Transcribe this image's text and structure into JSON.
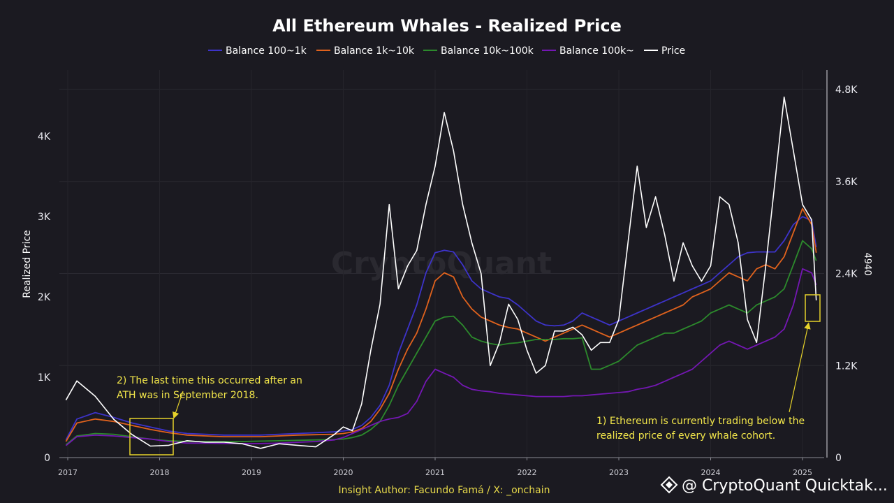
{
  "chart_data": {
    "type": "line",
    "title": "All Ethereum Whales - Realized Price",
    "ylabel": "Realized Price",
    "y2_marker_label": "4940",
    "legend_position": "top-center",
    "grid": true,
    "x_ticks": [
      "2017",
      "2018",
      "2019",
      "2020",
      "2021",
      "2022",
      "2023",
      "2024",
      "2025"
    ],
    "ylim": [
      0,
      4700
    ],
    "y_ticks": [
      {
        "value": 0,
        "label": "0"
      },
      {
        "value": 1000,
        "label": "1K"
      },
      {
        "value": 2000,
        "label": "2K"
      },
      {
        "value": 3000,
        "label": "3K"
      },
      {
        "value": 4000,
        "label": "4K"
      }
    ],
    "y2lim": [
      0,
      4800
    ],
    "y2_ticks": [
      {
        "value": 0,
        "label": "0"
      },
      {
        "value": 1200,
        "label": "1.2K"
      },
      {
        "value": 2400,
        "label": "2.4K"
      },
      {
        "value": 3600,
        "label": "3.6K"
      },
      {
        "value": 4800,
        "label": "4.8K"
      }
    ],
    "x": [
      2016.98,
      2017.1,
      2017.3,
      2017.5,
      2017.7,
      2017.9,
      2018.1,
      2018.3,
      2018.5,
      2018.7,
      2018.9,
      2019.1,
      2019.3,
      2019.5,
      2019.7,
      2019.9,
      2020.0,
      2020.1,
      2020.2,
      2020.3,
      2020.4,
      2020.5,
      2020.6,
      2020.7,
      2020.8,
      2020.9,
      2021.0,
      2021.1,
      2021.2,
      2021.3,
      2021.4,
      2021.5,
      2021.6,
      2021.7,
      2021.8,
      2021.9,
      2022.0,
      2022.1,
      2022.2,
      2022.3,
      2022.4,
      2022.5,
      2022.6,
      2022.7,
      2022.8,
      2022.9,
      2023.0,
      2023.1,
      2023.2,
      2023.3,
      2023.4,
      2023.5,
      2023.6,
      2023.7,
      2023.8,
      2023.9,
      2024.0,
      2024.1,
      2024.2,
      2024.3,
      2024.4,
      2024.5,
      2024.6,
      2024.7,
      2024.8,
      2024.9,
      2025.0,
      2025.1,
      2025.15
    ],
    "series": [
      {
        "name": "Balance 100~1k",
        "color": "#3d33c9",
        "axis": "left",
        "values": [
          220,
          480,
          560,
          500,
          430,
          380,
          330,
          300,
          290,
          280,
          280,
          280,
          290,
          300,
          310,
          320,
          330,
          350,
          400,
          500,
          650,
          900,
          1300,
          1600,
          1900,
          2300,
          2550,
          2580,
          2560,
          2400,
          2200,
          2100,
          2050,
          2000,
          1980,
          1900,
          1800,
          1700,
          1650,
          1640,
          1650,
          1700,
          1800,
          1750,
          1700,
          1650,
          1700,
          1750,
          1800,
          1850,
          1900,
          1950,
          2000,
          2050,
          2100,
          2150,
          2200,
          2300,
          2400,
          2500,
          2550,
          2560,
          2560,
          2560,
          2700,
          2900,
          3000,
          2950,
          2620
        ]
      },
      {
        "name": "Balance 1k~10k",
        "color": "#e0621d",
        "axis": "left",
        "values": [
          200,
          430,
          480,
          450,
          400,
          350,
          310,
          280,
          270,
          260,
          260,
          260,
          270,
          280,
          285,
          290,
          300,
          320,
          360,
          450,
          600,
          800,
          1100,
          1350,
          1550,
          1850,
          2200,
          2300,
          2250,
          2000,
          1850,
          1750,
          1700,
          1650,
          1620,
          1600,
          1550,
          1500,
          1450,
          1500,
          1550,
          1600,
          1650,
          1600,
          1550,
          1500,
          1550,
          1600,
          1650,
          1700,
          1750,
          1800,
          1850,
          1900,
          2000,
          2050,
          2100,
          2200,
          2300,
          2250,
          2200,
          2350,
          2400,
          2350,
          2500,
          2800,
          3100,
          2900,
          2550
        ]
      },
      {
        "name": "Balance 10k~100k",
        "color": "#2c8a2c",
        "axis": "left",
        "values": [
          160,
          270,
          300,
          290,
          260,
          230,
          210,
          200,
          200,
          200,
          200,
          205,
          210,
          215,
          220,
          225,
          230,
          250,
          280,
          350,
          450,
          650,
          900,
          1100,
          1300,
          1500,
          1700,
          1750,
          1760,
          1650,
          1500,
          1450,
          1420,
          1400,
          1420,
          1430,
          1450,
          1470,
          1470,
          1470,
          1480,
          1480,
          1490,
          1100,
          1100,
          1150,
          1200,
          1300,
          1400,
          1450,
          1500,
          1550,
          1550,
          1600,
          1650,
          1700,
          1800,
          1850,
          1900,
          1850,
          1800,
          1900,
          1950,
          2000,
          2100,
          2400,
          2700,
          2600,
          2450
        ]
      },
      {
        "name": "Balance 100k~",
        "color": "#7417b3",
        "axis": "left",
        "values": [
          150,
          260,
          280,
          270,
          250,
          230,
          200,
          180,
          180,
          175,
          175,
          175,
          180,
          190,
          200,
          220,
          250,
          300,
          350,
          400,
          450,
          480,
          500,
          550,
          700,
          950,
          1100,
          1050,
          1000,
          900,
          850,
          830,
          820,
          800,
          790,
          780,
          770,
          760,
          760,
          760,
          760,
          770,
          770,
          780,
          790,
          800,
          810,
          820,
          850,
          870,
          900,
          950,
          1000,
          1050,
          1100,
          1200,
          1300,
          1400,
          1450,
          1400,
          1350,
          1400,
          1450,
          1500,
          1600,
          1900,
          2350,
          2300,
          2150
        ]
      },
      {
        "name": "Price",
        "color": "#ffffff",
        "axis": "right",
        "values": [
          750,
          1000,
          800,
          500,
          300,
          150,
          160,
          220,
          200,
          200,
          180,
          120,
          180,
          160,
          140,
          300,
          400,
          350,
          700,
          1400,
          2000,
          3300,
          2200,
          2500,
          2700,
          3300,
          3800,
          4500,
          4000,
          3300,
          2800,
          2400,
          1200,
          1500,
          2000,
          1800,
          1400,
          1100,
          1200,
          1650,
          1650,
          1700,
          1600,
          1400,
          1500,
          1500,
          1800,
          2800,
          3800,
          3000,
          3400,
          2900,
          2300,
          2800,
          2500,
          2300,
          2500,
          3400,
          3300,
          2800,
          1800,
          1500,
          2500,
          3600,
          4700,
          4000,
          3300,
          3100,
          2050
        ]
      }
    ],
    "annotations": [
      {
        "text_lines": [
          "2) The last time this occurred after an",
          "ATH was in September 2018."
        ]
      },
      {
        "text_lines": [
          "1) Ethereum is currently trading below the",
          "realized price of every whale cohort."
        ]
      }
    ]
  },
  "credit": "Insight Author: Facundo Famá / X: _onchain",
  "brand": "@ CryptoQuant Quicktak...",
  "watermark": "CryptoQuant"
}
